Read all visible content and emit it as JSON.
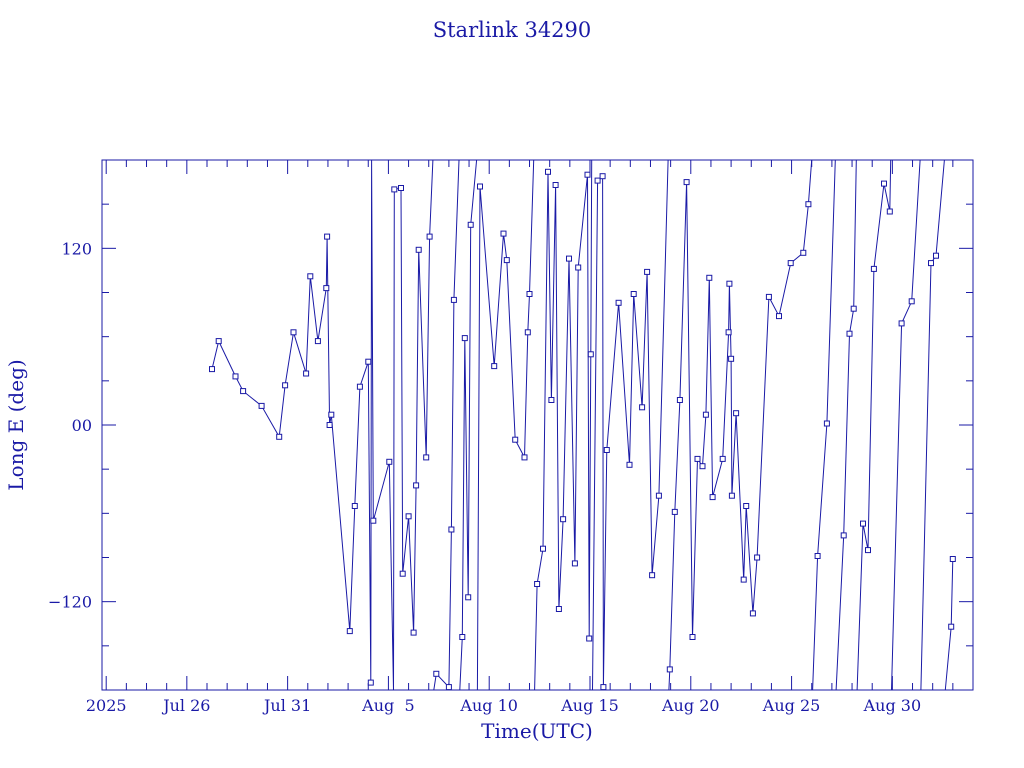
{
  "chart_data": {
    "type": "line",
    "title": "Starlink 34290",
    "xlabel": "Time(UTC)",
    "ylabel": "Long E (deg)",
    "x_unit": "date (UTC, 2025)",
    "xlim": [
      "2025-07-21T19:00",
      "2025-09-03T00:00"
    ],
    "ylim": [
      -180,
      180
    ],
    "y_ticks": [
      -120,
      0,
      120
    ],
    "y_tick_labels": [
      "−120",
      "00",
      "120"
    ],
    "x_tick_labels": [
      {
        "at": "2025-07-22",
        "label": "2025"
      },
      {
        "at": "2025-07-26",
        "label": "Jul 26"
      },
      {
        "at": "2025-07-31",
        "label": "Jul 31"
      },
      {
        "at": "2025-08-05",
        "label": "Aug  5"
      },
      {
        "at": "2025-08-10",
        "label": "Aug 10"
      },
      {
        "at": "2025-08-15",
        "label": "Aug 15"
      },
      {
        "at": "2025-08-20",
        "label": "Aug 20"
      },
      {
        "at": "2025-08-25",
        "label": "Aug 25"
      },
      {
        "at": "2025-08-30",
        "label": "Aug 30"
      }
    ],
    "grid": false,
    "markers": "open squares",
    "color": "#1a1aa6",
    "series": [
      {
        "points": [
          [
            "2025-07-27T06:00",
            38
          ],
          [
            "2025-07-27T14:00",
            57
          ],
          [
            "2025-07-28T10:00",
            33
          ],
          [
            "2025-07-28T19:00",
            23
          ],
          [
            "2025-07-29T17:00",
            13
          ],
          [
            "2025-07-30T14:00",
            -8
          ],
          [
            "2025-07-30T21:00",
            27
          ],
          [
            "2025-07-31T07:00",
            63
          ],
          [
            "2025-07-31T22:00",
            35
          ],
          [
            "2025-08-01T03:00",
            101
          ],
          [
            "2025-08-01T12:00",
            57
          ],
          [
            "2025-08-01T22:00",
            93
          ],
          [
            "2025-08-01T23:00",
            128
          ],
          [
            "2025-08-02T02:00",
            0
          ],
          [
            "2025-08-02T04:00",
            7
          ],
          [
            "2025-08-03T02:00",
            -140
          ],
          [
            "2025-08-03T08:00",
            -55
          ],
          [
            "2025-08-03T14:00",
            26
          ],
          [
            "2025-08-04T00:00",
            43
          ],
          [
            "2025-08-04T03:00",
            -175
          ],
          [
            "2025-08-04T04:00",
            180
          ],
          [
            "2025-08-04T06:00",
            -65
          ],
          [
            "2025-08-05T01:00",
            -25
          ],
          [
            "2025-08-05T06:00",
            -180
          ],
          [
            "2025-08-05T07:00",
            160
          ],
          [
            "2025-08-05T15:00",
            161
          ],
          [
            "2025-08-05T17:00",
            -101
          ],
          [
            "2025-08-06T00:00",
            -62
          ],
          [
            "2025-08-06T06:00",
            -141
          ],
          [
            "2025-08-06T09:00",
            -41
          ],
          [
            "2025-08-06T12:00",
            119
          ],
          [
            "2025-08-06T21:00",
            -22
          ],
          [
            "2025-08-07T01:00",
            128
          ],
          [
            "2025-08-07T05:00",
            180
          ],
          [
            "2025-08-07T06:00",
            -180
          ],
          [
            "2025-08-07T09:00",
            -169
          ],
          [
            "2025-08-08T00:00",
            -178
          ],
          [
            "2025-08-08T03:00",
            -71
          ],
          [
            "2025-08-08T06:00",
            85
          ],
          [
            "2025-08-08T12:00",
            180
          ],
          [
            "2025-08-08T13:00",
            -180
          ],
          [
            "2025-08-08T16:00",
            -144
          ],
          [
            "2025-08-08T19:00",
            59
          ],
          [
            "2025-08-08T23:00",
            -117
          ],
          [
            "2025-08-09T02:00",
            136
          ],
          [
            "2025-08-09T09:00",
            180
          ],
          [
            "2025-08-09T10:00",
            -180
          ],
          [
            "2025-08-09T13:00",
            162
          ],
          [
            "2025-08-10T06:00",
            40
          ],
          [
            "2025-08-10T17:00",
            130
          ],
          [
            "2025-08-10T21:00",
            112
          ],
          [
            "2025-08-11T07:00",
            -10
          ],
          [
            "2025-08-11T18:00",
            -22
          ],
          [
            "2025-08-11T22:00",
            63
          ],
          [
            "2025-08-12T00:00",
            89
          ],
          [
            "2025-08-12T05:00",
            180
          ],
          [
            "2025-08-12T06:00",
            -180
          ],
          [
            "2025-08-12T09:00",
            -108
          ],
          [
            "2025-08-12T16:00",
            -84
          ],
          [
            "2025-08-12T22:00",
            172
          ],
          [
            "2025-08-13T02:00",
            17
          ],
          [
            "2025-08-13T07:00",
            163
          ],
          [
            "2025-08-13T11:00",
            -125
          ],
          [
            "2025-08-13T16:00",
            -64
          ],
          [
            "2025-08-13T23:00",
            113
          ],
          [
            "2025-08-14T06:00",
            -94
          ],
          [
            "2025-08-14T10:00",
            107
          ],
          [
            "2025-08-14T21:00",
            170
          ],
          [
            "2025-08-14T23:00",
            -145
          ],
          [
            "2025-08-15T01:00",
            48
          ],
          [
            "2025-08-15T02:00",
            180
          ],
          [
            "2025-08-15T03:00",
            -180
          ],
          [
            "2025-08-15T09:00",
            166
          ],
          [
            "2025-08-15T15:00",
            169
          ],
          [
            "2025-08-15T16:00",
            -178
          ],
          [
            "2025-08-15T20:00",
            -17
          ],
          [
            "2025-08-16T10:00",
            83
          ],
          [
            "2025-08-16T23:00",
            -27
          ],
          [
            "2025-08-17T04:00",
            89
          ],
          [
            "2025-08-17T14:00",
            12
          ],
          [
            "2025-08-17T20:00",
            104
          ],
          [
            "2025-08-18T02:00",
            -102
          ],
          [
            "2025-08-18T10:00",
            -48
          ],
          [
            "2025-08-18T21:00",
            180
          ],
          [
            "2025-08-18T22:00",
            -180
          ],
          [
            "2025-08-18T23:00",
            -166
          ],
          [
            "2025-08-19T05:00",
            -59
          ],
          [
            "2025-08-19T11:00",
            17
          ],
          [
            "2025-08-19T19:00",
            165
          ],
          [
            "2025-08-20T02:00",
            -144
          ],
          [
            "2025-08-20T08:00",
            -23
          ],
          [
            "2025-08-20T14:00",
            -28
          ],
          [
            "2025-08-20T18:00",
            7
          ],
          [
            "2025-08-20T22:00",
            100
          ],
          [
            "2025-08-21T02:00",
            -49
          ],
          [
            "2025-08-21T14:00",
            -23
          ],
          [
            "2025-08-21T21:00",
            63
          ],
          [
            "2025-08-21T22:00",
            96
          ],
          [
            "2025-08-22T00:00",
            45
          ],
          [
            "2025-08-22T01:00",
            -48
          ],
          [
            "2025-08-22T06:00",
            8
          ],
          [
            "2025-08-22T15:00",
            -105
          ],
          [
            "2025-08-22T18:00",
            -55
          ],
          [
            "2025-08-23T02:00",
            -128
          ],
          [
            "2025-08-23T07:00",
            -90
          ],
          [
            "2025-08-23T21:00",
            87
          ],
          [
            "2025-08-24T09:00",
            74
          ],
          [
            "2025-08-24T23:00",
            110
          ],
          [
            "2025-08-25T14:00",
            117
          ],
          [
            "2025-08-25T20:00",
            150
          ],
          [
            "2025-08-26T00:00",
            180
          ],
          [
            "2025-08-26T01:00",
            -180
          ],
          [
            "2025-08-26T07:00",
            -89
          ],
          [
            "2025-08-26T18:00",
            1
          ],
          [
            "2025-08-27T04:00",
            180
          ],
          [
            "2025-08-27T05:00",
            -180
          ],
          [
            "2025-08-27T14:00",
            -75
          ],
          [
            "2025-08-27T21:00",
            62
          ],
          [
            "2025-08-28T02:00",
            79
          ],
          [
            "2025-08-28T05:00",
            180
          ],
          [
            "2025-08-28T06:00",
            -180
          ],
          [
            "2025-08-28T13:00",
            -67
          ],
          [
            "2025-08-28T19:00",
            -85
          ],
          [
            "2025-08-29T02:00",
            106
          ],
          [
            "2025-08-29T14:00",
            164
          ],
          [
            "2025-08-29T21:00",
            145
          ],
          [
            "2025-08-29T22:00",
            180
          ],
          [
            "2025-08-29T23:00",
            -180
          ],
          [
            "2025-08-30T11:00",
            69
          ],
          [
            "2025-08-30T23:00",
            84
          ],
          [
            "2025-08-31T09:00",
            180
          ],
          [
            "2025-08-31T10:00",
            -180
          ],
          [
            "2025-08-31T22:00",
            110
          ],
          [
            "2025-09-01T04:00",
            115
          ],
          [
            "2025-09-01T14:00",
            180
          ],
          [
            "2025-09-01T15:00",
            -180
          ],
          [
            "2025-09-01T22:00",
            -137
          ],
          [
            "2025-09-02T00:00",
            -91
          ]
        ]
      }
    ]
  }
}
